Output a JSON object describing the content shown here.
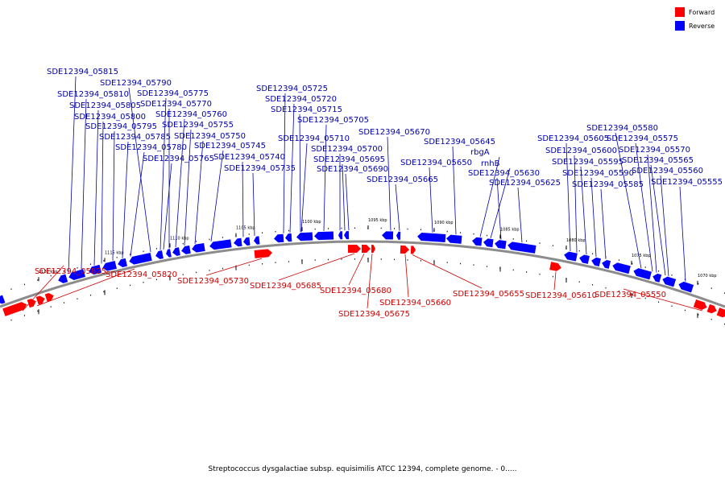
{
  "legend": [
    {
      "label": "Forward",
      "color": "#ff0000"
    },
    {
      "label": "Reverse",
      "color": "#0000ff"
    }
  ],
  "colors": {
    "forward_label": "#cc0000",
    "reverse_label": "#0000aa",
    "backbone": "#8c8c8c"
  },
  "caption": "Streptococcus dysgalactiae subsp. equisimilis ATCC 12394, complete genome. - 0.....",
  "ticks": [
    "1120 kbp",
    "1115 kbp",
    "1110 kbp",
    "1105 kbp",
    "1100 kbp",
    "1095 kbp",
    "1090 kbp",
    "1085 kbp",
    "1080 kbp",
    "1075 kbp",
    "1070 kbp"
  ],
  "reverse_labels": [
    "SDE12394_05815",
    "SDE12394_05790",
    "SDE12394_05810",
    "SDE12394_05775",
    "SDE12394_05805",
    "SDE12394_05770",
    "SDE12394_05800",
    "SDE12394_05760",
    "SDE12394_05795",
    "SDE12394_05755",
    "SDE12394_05785",
    "SDE12394_05750",
    "SDE12394_05780",
    "SDE12394_05745",
    "SDE12394_05765",
    "SDE12394_05740",
    "SDE12394_05735",
    "SDE12394_05725",
    "SDE12394_05720",
    "SDE12394_05715",
    "SDE12394_05705",
    "SDE12394_05710",
    "SDE12394_05700",
    "SDE12394_05695",
    "SDE12394_05690",
    "SDE12394_05670",
    "SDE12394_05665",
    "SDE12394_05645",
    "SDE12394_05650",
    "rbgA",
    "rnhB",
    "SDE12394_05630",
    "SDE12394_05625",
    "SDE12394_05580",
    "SDE12394_05605",
    "SDE12394_05575",
    "SDE12394_05600",
    "SDE12394_05570",
    "SDE12394_05595",
    "SDE12394_05565",
    "SDE12394_05590",
    "SDE12394_05560",
    "SDE12394_05585",
    "SDE12394_05555"
  ],
  "forward_labels": [
    "SDE12394_05825",
    "SDE12394_05820",
    "SDE12394_05730",
    "SDE12394_05685",
    "SDE12394_05680",
    "SDE12394_05675",
    "SDE12394_05660",
    "SDE12394_05655",
    "SDE12394_05610",
    "SDE12394_05550"
  ]
}
